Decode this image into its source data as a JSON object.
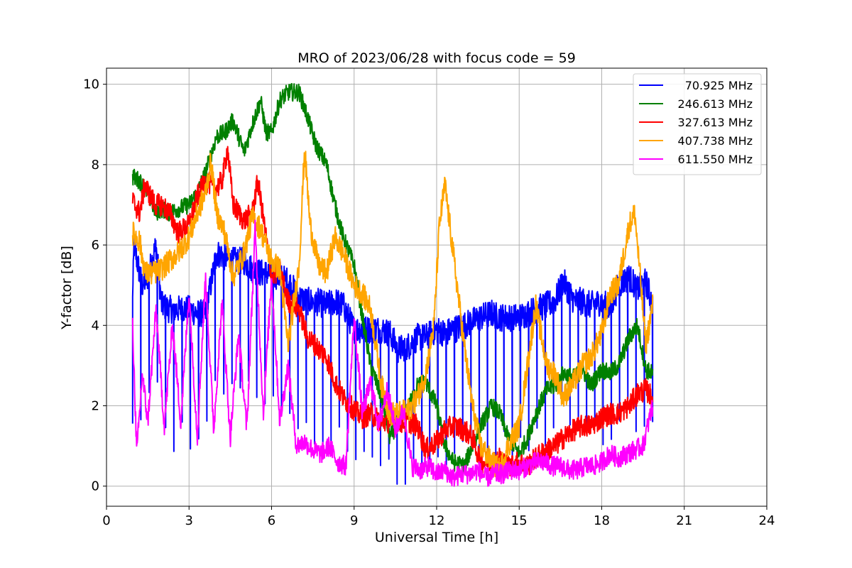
{
  "chart_data": {
    "type": "line",
    "title": "MRO of 2023/06/28 with focus code = 59",
    "xlabel": "Universal Time [h]",
    "ylabel": "Y-factor [dB]",
    "xlim": [
      0,
      24
    ],
    "ylim": [
      -0.5,
      10.4
    ],
    "xticks": [
      0,
      3,
      6,
      9,
      12,
      15,
      18,
      21,
      24
    ],
    "xtick_labels": [
      "0",
      "3",
      "6",
      "9",
      "12",
      "15",
      "18",
      "21",
      "24"
    ],
    "yticks": [
      0,
      2,
      4,
      6,
      8,
      10
    ],
    "ytick_labels": [
      "0",
      "2",
      "4",
      "6",
      "8",
      "10"
    ],
    "grid": true,
    "legend_position": "top-right",
    "series": [
      {
        "name": "70.925 MHz",
        "color": "#0000ff",
        "x": [
          0.95,
          1.0,
          1.2,
          1.3,
          1.5,
          1.8,
          2.0,
          2.3,
          2.6,
          3.0,
          3.3,
          3.6,
          4.0,
          4.3,
          4.6,
          5.0,
          5.3,
          5.6,
          6.0,
          6.3,
          6.6,
          7.0,
          7.3,
          7.6,
          8.0,
          8.3,
          8.6,
          9.0,
          9.3,
          9.6,
          10.0,
          10.3,
          10.6,
          11.0,
          11.3,
          11.6,
          12.0,
          12.3,
          12.6,
          13.0,
          13.3,
          13.6,
          14.0,
          14.3,
          14.6,
          15.0,
          15.3,
          15.6,
          16.0,
          16.3,
          16.6,
          17.0,
          17.3,
          17.6,
          18.0,
          18.3,
          18.6,
          19.0,
          19.3,
          19.6,
          19.85
        ],
        "y": [
          4.6,
          6.0,
          5.3,
          5.0,
          5.2,
          6.0,
          4.5,
          4.4,
          4.4,
          4.4,
          4.3,
          4.3,
          5.8,
          5.7,
          5.6,
          5.6,
          5.4,
          5.3,
          5.3,
          5.2,
          5.1,
          4.7,
          4.6,
          4.6,
          4.5,
          4.6,
          4.5,
          3.9,
          3.9,
          3.9,
          3.9,
          3.8,
          3.4,
          3.5,
          3.7,
          3.7,
          3.9,
          3.8,
          3.9,
          4.0,
          4.1,
          4.2,
          4.3,
          4.2,
          4.2,
          4.2,
          4.3,
          4.4,
          4.5,
          4.6,
          5.1,
          4.6,
          4.6,
          4.5,
          4.6,
          4.4,
          5.0,
          5.2,
          4.9,
          5.1,
          4.5
        ],
        "dip_interval_h": 0.3,
        "dip_depth": 2.8
      },
      {
        "name": "246.613 MHz",
        "color": "#008000",
        "x": [
          0.95,
          1.2,
          1.5,
          1.8,
          2.0,
          2.3,
          2.6,
          3.0,
          3.3,
          3.6,
          4.0,
          4.3,
          4.6,
          5.0,
          5.3,
          5.6,
          5.8,
          6.0,
          6.3,
          6.6,
          7.0,
          7.3,
          7.6,
          8.0,
          8.3,
          8.6,
          9.0,
          9.3,
          9.6,
          10.0,
          10.3,
          10.6,
          11.0,
          11.3,
          11.6,
          12.0,
          12.3,
          12.6,
          13.0,
          13.3,
          13.6,
          14.0,
          14.3,
          14.6,
          15.0,
          15.3,
          15.6,
          16.0,
          16.3,
          16.6,
          17.0,
          17.3,
          17.6,
          18.0,
          18.3,
          18.6,
          19.0,
          19.3,
          19.6,
          19.85
        ],
        "y": [
          7.7,
          7.6,
          7.3,
          6.8,
          6.9,
          6.8,
          6.9,
          7.0,
          7.3,
          7.8,
          8.7,
          8.8,
          9.1,
          8.3,
          9.0,
          9.6,
          8.8,
          8.8,
          9.6,
          9.8,
          9.8,
          9.2,
          8.5,
          8.0,
          7.0,
          6.2,
          5.5,
          4.2,
          3.0,
          2.2,
          1.2,
          1.6,
          2.0,
          2.5,
          2.6,
          2.0,
          1.0,
          0.6,
          0.5,
          1.0,
          1.5,
          2.0,
          1.8,
          1.2,
          0.8,
          1.2,
          1.8,
          2.4,
          2.5,
          2.8,
          2.7,
          2.9,
          2.5,
          2.9,
          2.8,
          3.0,
          3.7,
          4.0,
          2.9,
          2.8
        ]
      },
      {
        "name": "327.613 MHz",
        "color": "#ff0000",
        "x": [
          0.95,
          1.2,
          1.4,
          1.6,
          1.8,
          2.0,
          2.3,
          2.6,
          3.0,
          3.3,
          3.6,
          4.0,
          4.2,
          4.4,
          4.6,
          5.0,
          5.3,
          5.5,
          5.8,
          6.0,
          6.3,
          6.6,
          7.0,
          7.3,
          7.6,
          8.0,
          8.3,
          8.6,
          9.0,
          9.3,
          9.6,
          10.0,
          10.3,
          10.6,
          11.0,
          11.3,
          11.6,
          12.0,
          12.3,
          12.6,
          13.0,
          13.3,
          13.6,
          14.0,
          14.3,
          14.6,
          15.0,
          15.3,
          15.6,
          16.0,
          16.3,
          16.6,
          17.0,
          17.3,
          17.6,
          18.0,
          18.3,
          18.6,
          19.0,
          19.3,
          19.6,
          19.85
        ],
        "y": [
          7.1,
          6.8,
          7.5,
          7.2,
          7.0,
          7.0,
          6.8,
          6.3,
          6.5,
          7.2,
          7.6,
          7.4,
          7.6,
          8.4,
          7.0,
          6.6,
          6.8,
          7.6,
          6.2,
          5.2,
          5.4,
          4.6,
          4.4,
          3.7,
          3.5,
          3.2,
          2.6,
          2.2,
          1.9,
          1.7,
          1.8,
          1.6,
          1.6,
          1.6,
          1.6,
          1.5,
          0.9,
          1.1,
          1.4,
          1.5,
          1.4,
          1.2,
          0.6,
          0.6,
          0.7,
          0.5,
          0.6,
          0.5,
          0.7,
          0.9,
          1.0,
          1.2,
          1.4,
          1.5,
          1.5,
          1.7,
          1.8,
          1.8,
          2.0,
          2.3,
          2.4,
          2.2
        ]
      },
      {
        "name": "407.738 MHz",
        "color": "#ffa500",
        "x": [
          0.95,
          1.2,
          1.4,
          1.7,
          2.0,
          2.3,
          2.6,
          3.0,
          3.3,
          3.6,
          3.8,
          4.0,
          4.3,
          4.6,
          5.0,
          5.3,
          5.6,
          6.0,
          6.3,
          6.6,
          6.8,
          7.0,
          7.2,
          7.4,
          7.7,
          8.0,
          8.3,
          8.6,
          9.0,
          9.3,
          9.6,
          10.0,
          10.3,
          10.6,
          11.0,
          11.3,
          11.6,
          11.9,
          12.1,
          12.3,
          12.6,
          13.0,
          13.3,
          13.6,
          14.0,
          14.3,
          14.6,
          15.0,
          15.3,
          15.6,
          16.0,
          16.3,
          16.6,
          17.0,
          17.3,
          17.6,
          18.0,
          18.3,
          18.6,
          19.0,
          19.2,
          19.4,
          19.6,
          19.85
        ],
        "y": [
          6.3,
          6.1,
          5.3,
          5.3,
          5.4,
          5.6,
          5.8,
          6.2,
          6.8,
          7.3,
          8.1,
          6.8,
          6.3,
          5.2,
          5.8,
          6.7,
          6.4,
          5.6,
          5.4,
          3.5,
          4.5,
          5.5,
          8.4,
          6.5,
          5.5,
          5.3,
          6.2,
          5.8,
          5.0,
          4.8,
          4.4,
          2.5,
          1.8,
          1.8,
          1.9,
          2.2,
          2.8,
          4.0,
          6.5,
          7.5,
          5.8,
          3.5,
          2.0,
          1.0,
          0.6,
          0.4,
          1.0,
          1.5,
          3.0,
          4.5,
          3.0,
          2.8,
          2.2,
          2.6,
          3.0,
          3.2,
          3.8,
          4.8,
          5.0,
          6.5,
          6.8,
          5.2,
          3.5,
          4.5
        ]
      },
      {
        "name": "611.550 MHz",
        "color": "#ff00ff",
        "x": [
          0.95,
          1.1,
          1.3,
          1.5,
          1.8,
          2.1,
          2.4,
          2.7,
          3.0,
          3.3,
          3.6,
          3.9,
          4.2,
          4.5,
          4.8,
          5.1,
          5.4,
          5.7,
          6.0,
          6.3,
          6.6,
          6.9,
          7.2,
          7.5,
          7.8,
          8.1,
          8.4,
          8.7,
          9.0,
          9.3,
          9.6,
          9.9,
          10.2,
          10.5,
          10.8,
          11.1,
          11.4,
          11.7,
          12.0,
          12.3,
          12.6,
          12.9,
          13.2,
          13.5,
          13.8,
          14.1,
          14.4,
          14.7,
          15.0,
          15.3,
          15.6,
          15.9,
          16.2,
          16.5,
          16.8,
          17.1,
          17.4,
          17.7,
          18.0,
          18.3,
          18.6,
          18.9,
          19.2,
          19.5,
          19.85
        ],
        "y": [
          4.0,
          0.8,
          2.8,
          1.6,
          4.4,
          1.5,
          4.0,
          1.6,
          4.8,
          1.2,
          5.2,
          1.4,
          4.6,
          1.2,
          3.8,
          1.4,
          6.4,
          1.8,
          5.2,
          1.6,
          3.0,
          1.0,
          1.1,
          0.9,
          0.8,
          1.0,
          0.6,
          0.5,
          4.2,
          1.8,
          2.6,
          1.5,
          2.4,
          1.4,
          1.9,
          0.5,
          0.4,
          0.5,
          0.3,
          0.4,
          0.2,
          0.3,
          0.3,
          0.4,
          0.2,
          0.3,
          0.3,
          0.4,
          0.4,
          0.5,
          0.6,
          0.6,
          0.5,
          0.5,
          0.4,
          0.4,
          0.5,
          0.5,
          0.6,
          0.8,
          0.7,
          0.8,
          0.9,
          1.0,
          2.0
        ]
      }
    ]
  }
}
